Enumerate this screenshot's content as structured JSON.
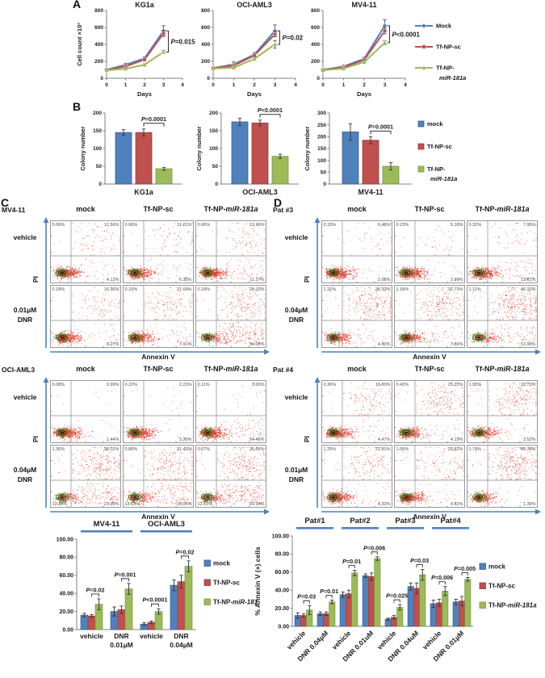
{
  "figure": {
    "panel_labels": {
      "a": "A",
      "b": "B",
      "c": "C",
      "d": "D"
    },
    "colors": {
      "mock_blue": "#4f81bd",
      "sc_red": "#c0504d",
      "mir_green": "#9bbb59",
      "axis_arrow_blue": "#4f81bd",
      "flow_dot_red": "#e43020"
    },
    "panel_a_legend": [
      "Mock",
      "Tf-NP-sc",
      "Tf-NP-miR-181a"
    ],
    "panel_b_legend": [
      "mock",
      "Tf-NP-sc",
      "Tf-NP-miR-181a"
    ]
  },
  "chart_data": [
    {
      "id": "A-KG1a",
      "panel": "A",
      "type": "line",
      "title": "KG1a",
      "xlabel": "Days",
      "ylabel": "Cell count ×10³",
      "x": [
        0,
        1,
        2,
        3
      ],
      "xticks": [
        0,
        1,
        2,
        3,
        4
      ],
      "ylim": [
        0,
        800
      ],
      "ytick_step": 200,
      "series": [
        {
          "name": "Mock",
          "color": "#4f81bd",
          "marker": "diamond",
          "values": [
            100,
            160,
            235,
            560
          ],
          "errors": [
            8,
            15,
            20,
            60
          ]
        },
        {
          "name": "Tf-NP-sc",
          "color": "#c0504d",
          "marker": "square",
          "values": [
            100,
            140,
            220,
            530
          ],
          "errors": [
            8,
            12,
            15,
            35
          ]
        },
        {
          "name": "Tf-NP-miR-181a",
          "color": "#9bbb59",
          "marker": "triangle",
          "values": [
            95,
            112,
            160,
            310
          ],
          "errors": [
            8,
            10,
            12,
            20
          ]
        }
      ],
      "p_label": "P=0.015"
    },
    {
      "id": "A-OCI-AML3",
      "panel": "A",
      "type": "line",
      "title": "OCI-AML3",
      "xlabel": "Days",
      "ylabel": "Cell count ×10³",
      "x": [
        0,
        1,
        2,
        3
      ],
      "xticks": [
        0,
        1,
        2,
        3,
        4
      ],
      "ylim": [
        0,
        800
      ],
      "ytick_step": 200,
      "series": [
        {
          "name": "Mock",
          "color": "#4f81bd",
          "marker": "diamond",
          "values": [
            120,
            165,
            280,
            560
          ],
          "errors": [
            10,
            30,
            25,
            70
          ]
        },
        {
          "name": "Tf-NP-sc",
          "color": "#c0504d",
          "marker": "square",
          "values": [
            120,
            150,
            270,
            520
          ],
          "errors": [
            10,
            15,
            20,
            30
          ]
        },
        {
          "name": "Tf-NP-miR-181a",
          "color": "#9bbb59",
          "marker": "triangle",
          "values": [
            115,
            125,
            230,
            400
          ],
          "errors": [
            10,
            12,
            18,
            45
          ]
        }
      ],
      "p_label": "P=0.02"
    },
    {
      "id": "A-MV4-11",
      "panel": "A",
      "type": "line",
      "title": "MV4-11",
      "xlabel": "Days",
      "ylabel": "Cell count ×10³",
      "x": [
        0,
        1,
        2,
        3
      ],
      "xticks": [
        0,
        1,
        2,
        3,
        4
      ],
      "ylim": [
        0,
        800
      ],
      "ytick_step": 200,
      "series": [
        {
          "name": "Mock",
          "color": "#4f81bd",
          "marker": "diamond",
          "values": [
            100,
            140,
            230,
            620
          ],
          "errors": [
            8,
            12,
            20,
            70
          ]
        },
        {
          "name": "Tf-NP-sc",
          "color": "#c0504d",
          "marker": "square",
          "values": [
            100,
            130,
            215,
            560
          ],
          "errors": [
            8,
            10,
            15,
            35
          ]
        },
        {
          "name": "Tf-NP-miR-181a",
          "color": "#9bbb59",
          "marker": "triangle",
          "values": [
            95,
            115,
            190,
            420
          ],
          "errors": [
            8,
            10,
            12,
            25
          ]
        }
      ],
      "p_label": "P<0.0001"
    },
    {
      "id": "B-KG1a",
      "panel": "B",
      "type": "bar",
      "category_label": "KG1a",
      "ylabel": "Colony number",
      "ylim": [
        0,
        200
      ],
      "ytick_step": 50,
      "categories": [
        "mock",
        "Tf-NP-sc",
        "Tf-NP-miR-181a"
      ],
      "values": [
        145,
        145,
        43
      ],
      "errors": [
        8,
        10,
        4
      ],
      "p_label": "P=0.0001"
    },
    {
      "id": "B-OCI-AML3",
      "panel": "B",
      "type": "bar",
      "category_label": "OCI-AML3",
      "ylabel": "Colony number",
      "ylim": [
        0,
        200
      ],
      "ytick_step": 50,
      "categories": [
        "mock",
        "Tf-NP-sc",
        "Tf-NP-miR-181a"
      ],
      "values": [
        175,
        172,
        78
      ],
      "errors": [
        10,
        8,
        6
      ],
      "p_label": "P<0.0001"
    },
    {
      "id": "B-MV4-11",
      "panel": "B",
      "type": "bar",
      "category_label": "MV4-11",
      "ylabel": "Colony number",
      "ylim": [
        0,
        300
      ],
      "ytick_step": 50,
      "categories": [
        "mock",
        "Tf-NP-sc",
        "Tf-NP-miR-181a"
      ],
      "values": [
        220,
        185,
        75
      ],
      "errors": [
        35,
        15,
        15
      ],
      "p_label": "P=0.0001"
    },
    {
      "id": "annexin-cell-lines",
      "panel": "C-summary",
      "type": "grouped-bar",
      "ylabel": "",
      "ylim": [
        0,
        100
      ],
      "ytick_step": 20,
      "group_headers": [
        {
          "label": "MV4-11",
          "cols": [
            0,
            1
          ]
        },
        {
          "label": "OCI-AML3",
          "cols": [
            2,
            3
          ]
        }
      ],
      "categories": [
        [
          "vehicle"
        ],
        [
          "DNR",
          "0.01µM"
        ],
        [
          "vehicle"
        ],
        [
          "DNR",
          "0.04µM"
        ]
      ],
      "series": [
        {
          "name": "mock",
          "values": [
            16,
            20,
            6,
            49
          ],
          "errors": [
            2,
            5,
            1.5,
            6
          ]
        },
        {
          "name": "Tf-NP-sc",
          "values": [
            15,
            22,
            8,
            53
          ],
          "errors": [
            1.5,
            4,
            1.5,
            7
          ]
        },
        {
          "name": "Tf-NP-miR-181",
          "values": [
            28,
            45,
            20,
            70
          ],
          "errors": [
            6,
            6,
            3,
            6
          ]
        }
      ],
      "p_labels": [
        "P=0.02",
        "P=0.001",
        "P<0.0001",
        "P=0.02"
      ],
      "legend": [
        "mock",
        "Tf-NP-sc",
        "Tf-NP-miR-181"
      ]
    },
    {
      "id": "annexin-patients",
      "panel": "D-summary",
      "type": "grouped-bar",
      "ylabel": "% Annexin V (+) cells",
      "ylim": [
        0,
        100
      ],
      "ytick_step": 20,
      "group_headers": [
        {
          "label": "Pat#1",
          "cols": [
            0,
            1
          ]
        },
        {
          "label": "Pat#2",
          "cols": [
            2,
            3
          ]
        },
        {
          "label": "Pat#3",
          "cols": [
            4,
            5
          ]
        },
        {
          "label": "Pat#4",
          "cols": [
            6,
            7
          ]
        }
      ],
      "categories": [
        "vehicle",
        "DNR 0.04µM",
        "vehicle",
        "DNR 0.01uM",
        "vehicle",
        "DNR 0.04uM",
        "vehicle",
        "DNR 0.01µM"
      ],
      "series": [
        {
          "name": "mock",
          "values": [
            12,
            14,
            35,
            56,
            8,
            44,
            25,
            27
          ],
          "errors": [
            3,
            2,
            3,
            2,
            1,
            4,
            4,
            3
          ]
        },
        {
          "name": "Tf-NP-sc",
          "values": [
            12,
            14,
            36,
            55,
            10,
            42,
            26,
            28
          ],
          "errors": [
            2,
            2,
            4,
            4,
            2,
            6,
            4,
            5
          ]
        },
        {
          "name": "Tf-NP-miR-181a",
          "values": [
            18,
            27,
            59,
            75,
            21,
            57,
            39,
            52
          ],
          "errors": [
            5,
            2,
            3,
            2,
            3,
            6,
            5,
            2
          ]
        }
      ],
      "p_labels": [
        "P=0.03",
        "P=0.01",
        "P=0.01",
        "P=0.006",
        "P=0.025",
        "P=0.03",
        "P=0.006",
        "P=0.005"
      ],
      "legend": [
        "mock",
        "Tf-NP-sc",
        "Tf-NP-miR-181a"
      ]
    }
  ],
  "flow_panels": [
    {
      "id": "C",
      "xoff": 0,
      "blocks": [
        {
          "name": "MV4-11",
          "yaxis": "PI",
          "xaxis": "Annexin V",
          "columns": [
            "mock",
            "Tf-NP-sc",
            "Tf-NP-miR-181a"
          ],
          "rows": [
            {
              "label": [
                "vehicle"
              ],
              "plots": [
                {
                  "ul": "0.09%",
                  "ur": "12.56%",
                  "lr": "4.12%"
                },
                {
                  "ul": "0.06%",
                  "ur": "11.61%",
                  "lr": "6.33%"
                },
                {
                  "ul": "0.06%",
                  "ur": "13.96%",
                  "lr": "11.27%"
                }
              ]
            },
            {
              "label": [
                "0.01µM",
                "DNR"
              ],
              "plots": [
                {
                  "ul": "0.18%",
                  "ur": "16.36%",
                  "lr": "6.27%"
                },
                {
                  "ul": "0.10%",
                  "ur": "21.69%",
                  "lr": "7.91%"
                },
                {
                  "ul": "0.18%",
                  "ur": "28.15%",
                  "lr": "34.19%"
                }
              ]
            }
          ]
        },
        {
          "name": "OCI-AML3",
          "yaxis": "PI",
          "xaxis": "Annexin V",
          "columns": [
            "mock",
            "Tf-NP-sc",
            "Tf-NP-miR-181a"
          ],
          "rows": [
            {
              "label": [
                "vehicle"
              ],
              "plots": [
                {
                  "ul": "0.08%",
                  "ur": "0.99%",
                  "lr": "1.44%"
                },
                {
                  "ul": "0.22%",
                  "ur": "2.23%",
                  "lr": "3.20%"
                },
                {
                  "ul": "0.11%",
                  "ur": "3.00%",
                  "lr": "14.46%"
                }
              ]
            },
            {
              "label": [
                "0.04µM",
                "DNR"
              ],
              "plots": [
                {
                  "ul": "1.30%",
                  "ur": "38.02%",
                  "ll": "13.39%",
                  "lr": "23.90%"
                },
                {
                  "ul": "0.80%",
                  "ur": "31.43%",
                  "ll": "13.19%",
                  "lr": "23.06%"
                },
                {
                  "ul": "0.67%",
                  "ur": "35.05%",
                  "ll": "12.61%",
                  "lr": "29.34%"
                }
              ]
            }
          ]
        }
      ]
    },
    {
      "id": "D",
      "xoff": 336,
      "blocks": [
        {
          "name": "Pat #3",
          "yaxis": "PI",
          "xaxis": "Annexin V",
          "columns": [
            "mock",
            "Tf-NP-sc",
            "Tf-NP-miR-181a"
          ],
          "rows": [
            {
              "label": [
                "vehicle"
              ],
              "plots": [
                {
                  "ul": "0.33%",
                  "ur": "6.48%",
                  "lr": "2.08%"
                },
                {
                  "ul": "0.23%",
                  "ur": "5.18%",
                  "lr": "2.99%"
                },
                {
                  "ul": "0.32%",
                  "ur": "7.95%",
                  "lr": "11.81%"
                }
              ]
            },
            {
              "label": [
                "0.04µM",
                "DNR"
              ],
              "plots": [
                {
                  "ul": "1.21%",
                  "ur": "36.33%",
                  "lr": "4.90%"
                },
                {
                  "ul": "1.13%",
                  "ur": "32.73%",
                  "lr": "7.89%"
                },
                {
                  "ul": "1.11%",
                  "ur": "46.33%",
                  "lr": "13.96%"
                }
              ]
            }
          ]
        },
        {
          "name": "Pat #4",
          "yaxis": "PI",
          "xaxis": "Annexin V",
          "columns": [
            "mock",
            "Tf-NP-sc",
            "Tf-NP-miR-181a"
          ],
          "rows": [
            {
              "label": [
                "vehicle"
              ],
              "plots": [
                {
                  "ul": "0.36%",
                  "ur": "18.80%",
                  "lr": "4.47%"
                },
                {
                  "ul": "0.42%",
                  "ur": "29.12%",
                  "lr": "4.19%"
                },
                {
                  "ul": "1.95%",
                  "ur": "32.73%",
                  "lr": "3.52%"
                }
              ]
            },
            {
              "label": [
                "0.01µM",
                "DNR"
              ],
              "plots": [
                {
                  "ul": "1.25%",
                  "ur": "21.81%",
                  "lr": "4.33%"
                },
                {
                  "ul": "1.05%",
                  "ur": "20.82%",
                  "lr": "4.82%"
                },
                {
                  "ul": "1.79%",
                  "ur": "45.74%",
                  "lr": "1.39%"
                }
              ]
            }
          ]
        }
      ]
    }
  ]
}
